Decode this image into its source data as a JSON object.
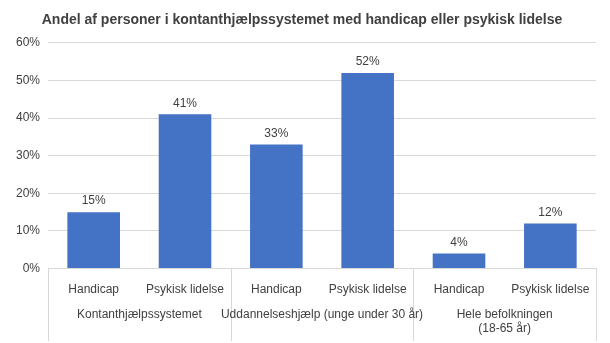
{
  "chart_data": {
    "type": "bar",
    "title": "Andel af personer i kontanthjælpssystemet med handicap eller psykisk lidelse",
    "categories": [
      [
        "Kontanthjælpssystemet",
        "Handicap"
      ],
      [
        "Kontanthjælpssystemet",
        "Psykisk lidelse"
      ],
      [
        "Uddannelseshjælp (unge under 30 år)",
        "Handicap"
      ],
      [
        "Uddannelseshjælp (unge under 30 år)",
        "Psykisk lidelse"
      ],
      [
        [
          "Hele befolkningen",
          "(18-65 år)"
        ],
        "Handicap"
      ],
      [
        [
          "Hele befolkningen",
          "(18-65 år)"
        ],
        "Psykisk lidelse"
      ]
    ],
    "values": [
      15,
      41,
      33,
      52,
      4,
      12
    ],
    "value_labels": [
      "15%",
      "41%",
      "33%",
      "52%",
      "4%",
      "12%"
    ],
    "color": "#4472c4",
    "ylim": [
      0,
      60
    ],
    "yticks": [
      {
        "value": 0,
        "label": "0%"
      },
      {
        "value": 10,
        "label": "10%"
      },
      {
        "value": 20,
        "label": "20%"
      },
      {
        "value": 30,
        "label": "30%"
      },
      {
        "value": 40,
        "label": "40%"
      },
      {
        "value": 50,
        "label": "50%"
      },
      {
        "value": 60,
        "label": "60%"
      }
    ],
    "grid": true,
    "data_labels": true
  }
}
